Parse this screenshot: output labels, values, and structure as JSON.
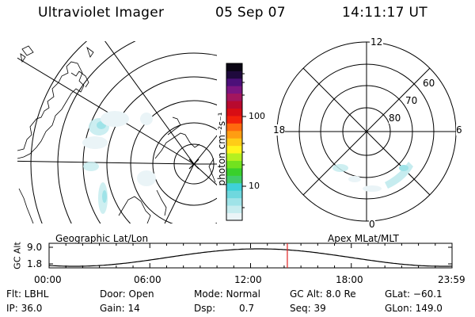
{
  "header": {
    "instrument": "Ultraviolet Imager",
    "date": "05 Sep 07",
    "time": "14:11:17 UT"
  },
  "colorbar": {
    "unit_label": "photon cm⁻²s⁻¹",
    "tick_100": "100",
    "tick_10": "10",
    "colors": [
      "#eaf4f7",
      "#c6ecef",
      "#9fe3e8",
      "#6fd8de",
      "#3fd1d9",
      "#40cc6a",
      "#39d02c",
      "#72e21f",
      "#b5f020",
      "#fff41c",
      "#ffcc17",
      "#ff9d12",
      "#ff6a0e",
      "#f2220b",
      "#d80d14",
      "#b80a2f",
      "#a3165e",
      "#7c1580",
      "#4c1079",
      "#1f0a3d",
      "#0a0514"
    ]
  },
  "left_map": {
    "caption": "Geographic Lat/Lon"
  },
  "right_map": {
    "caption": "Apex MLat/MLT",
    "mlt_labels": {
      "top": "12",
      "left": "18",
      "right": "6",
      "bottom": "0"
    },
    "lat_labels": {
      "l60": "60",
      "l70": "70",
      "l80": "80"
    }
  },
  "altitude": {
    "axis_label": "GC Alt",
    "y_top": "9.0",
    "y_bottom": "1.8",
    "x_ticks": [
      "00:00",
      "06:00",
      "12:00",
      "18:00",
      "23:59"
    ],
    "current_time_hours": 14.19
  },
  "footer": {
    "row1": {
      "filter": "Flt: LBHL",
      "door": "Door: Open",
      "mode": "Mode: Normal",
      "gc_alt": "GC Alt: 8.0 Re",
      "glat": "GLat: −60.1"
    },
    "row2": {
      "ip": "IP: 36.0",
      "gain": "Gain: 14",
      "dsp": "Dsp:",
      "dsp_value": "0.7",
      "seq": "Seq: 39",
      "glon": "GLon: 149.0"
    }
  }
}
